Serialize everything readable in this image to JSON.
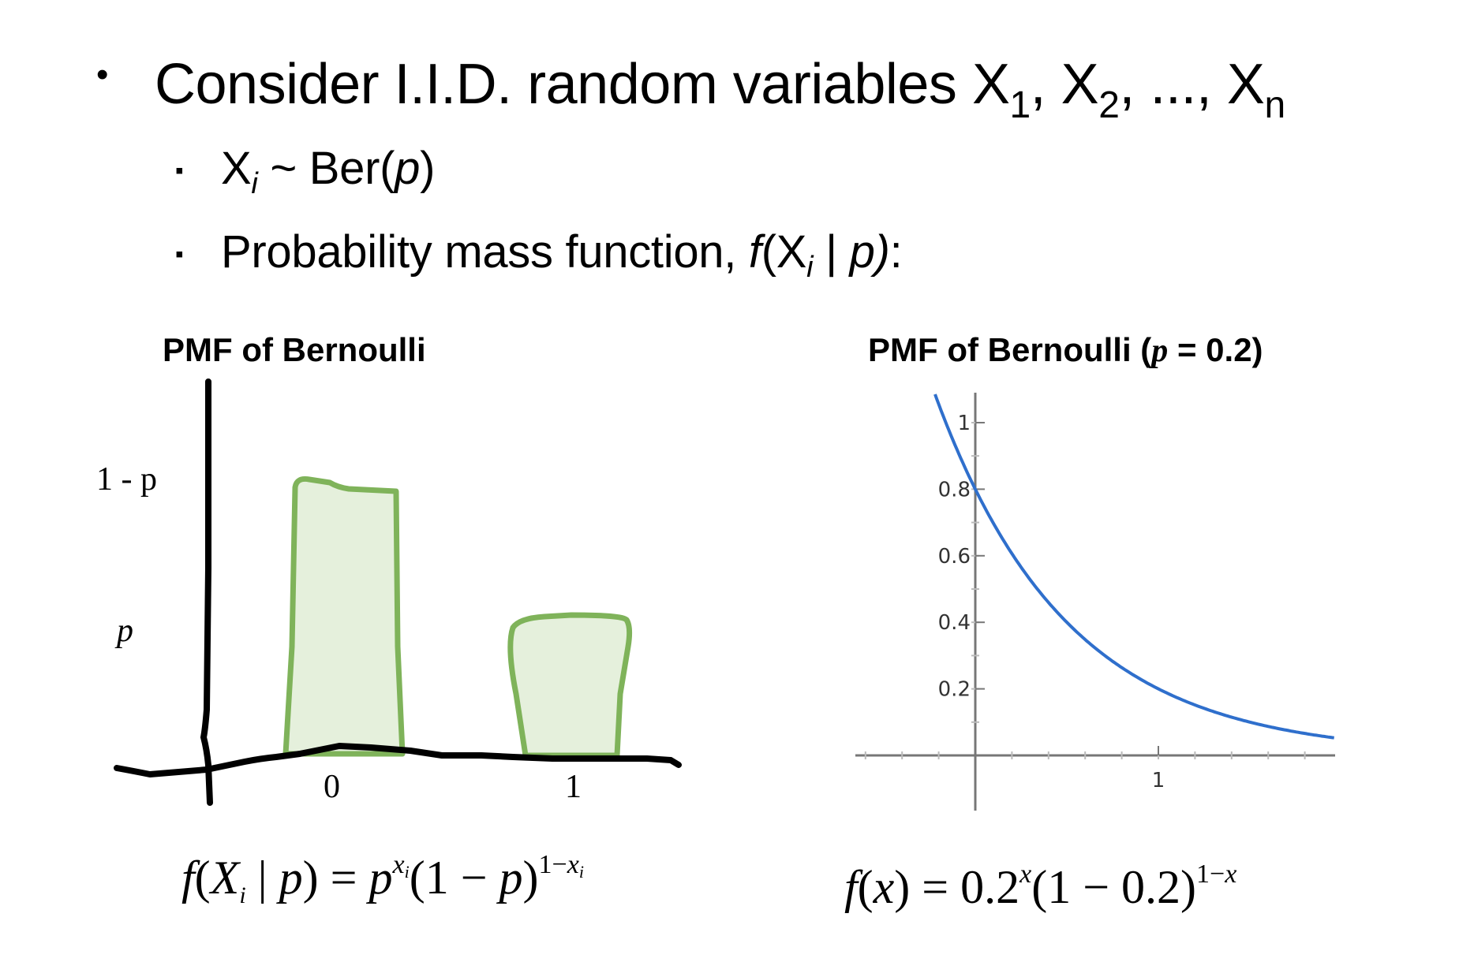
{
  "header": {
    "bullet_glyph": "•",
    "intro_text": "Consider I.I.D. random variables X",
    "sub_1": "1",
    "sep_1": ", X",
    "sub_2": "2",
    "sep_2": ", ..., X",
    "sub_n": "n"
  },
  "bullets": {
    "glyph": "▪",
    "dist_var": "X",
    "dist_sub": "i",
    "dist_mid": " ~ Ber(",
    "dist_param": "p",
    "dist_end": ")",
    "pmf_prefix": "Probability mass function, ",
    "pmf_f": "f",
    "pmf_open": "(X",
    "pmf_sub": "i",
    "pmf_bar": " | ",
    "pmf_p": "p)",
    "pmf_colon": ":"
  },
  "chart_data": [
    {
      "type": "bar",
      "title": "PMF of Bernoulli",
      "categories": [
        "0",
        "1"
      ],
      "values": [
        0.8,
        0.4
      ],
      "ytick_labels": [
        "1 - p",
        "p"
      ],
      "bar_color": "#7fb35a",
      "bar_fill": "#e5f0dc",
      "formula": "f(X_i | p) = p^{x_i}(1 - p)^{1 - x_i}"
    },
    {
      "type": "line",
      "title_prefix": "PMF of Bernoulli (",
      "title_param": "p",
      "title_suffix": " = 0.2)",
      "function": "f(x) = 0.2^x (1 - 0.2)^(1 - x)",
      "xlim": [
        -0.6,
        2.0
      ],
      "ylim": [
        0,
        1.1
      ],
      "xticks": [
        1
      ],
      "yticks": [
        0.2,
        0.4,
        0.6,
        0.8,
        1
      ],
      "ytick_labels": [
        "0.2",
        "0.4",
        "0.6",
        "0.8",
        "1"
      ],
      "xtick_labels": [
        "1"
      ],
      "line_color": "#2f6fcc",
      "grid": false,
      "formula": "f(x) = 0.2^x(1 - 0.2)^{1-x}"
    }
  ]
}
